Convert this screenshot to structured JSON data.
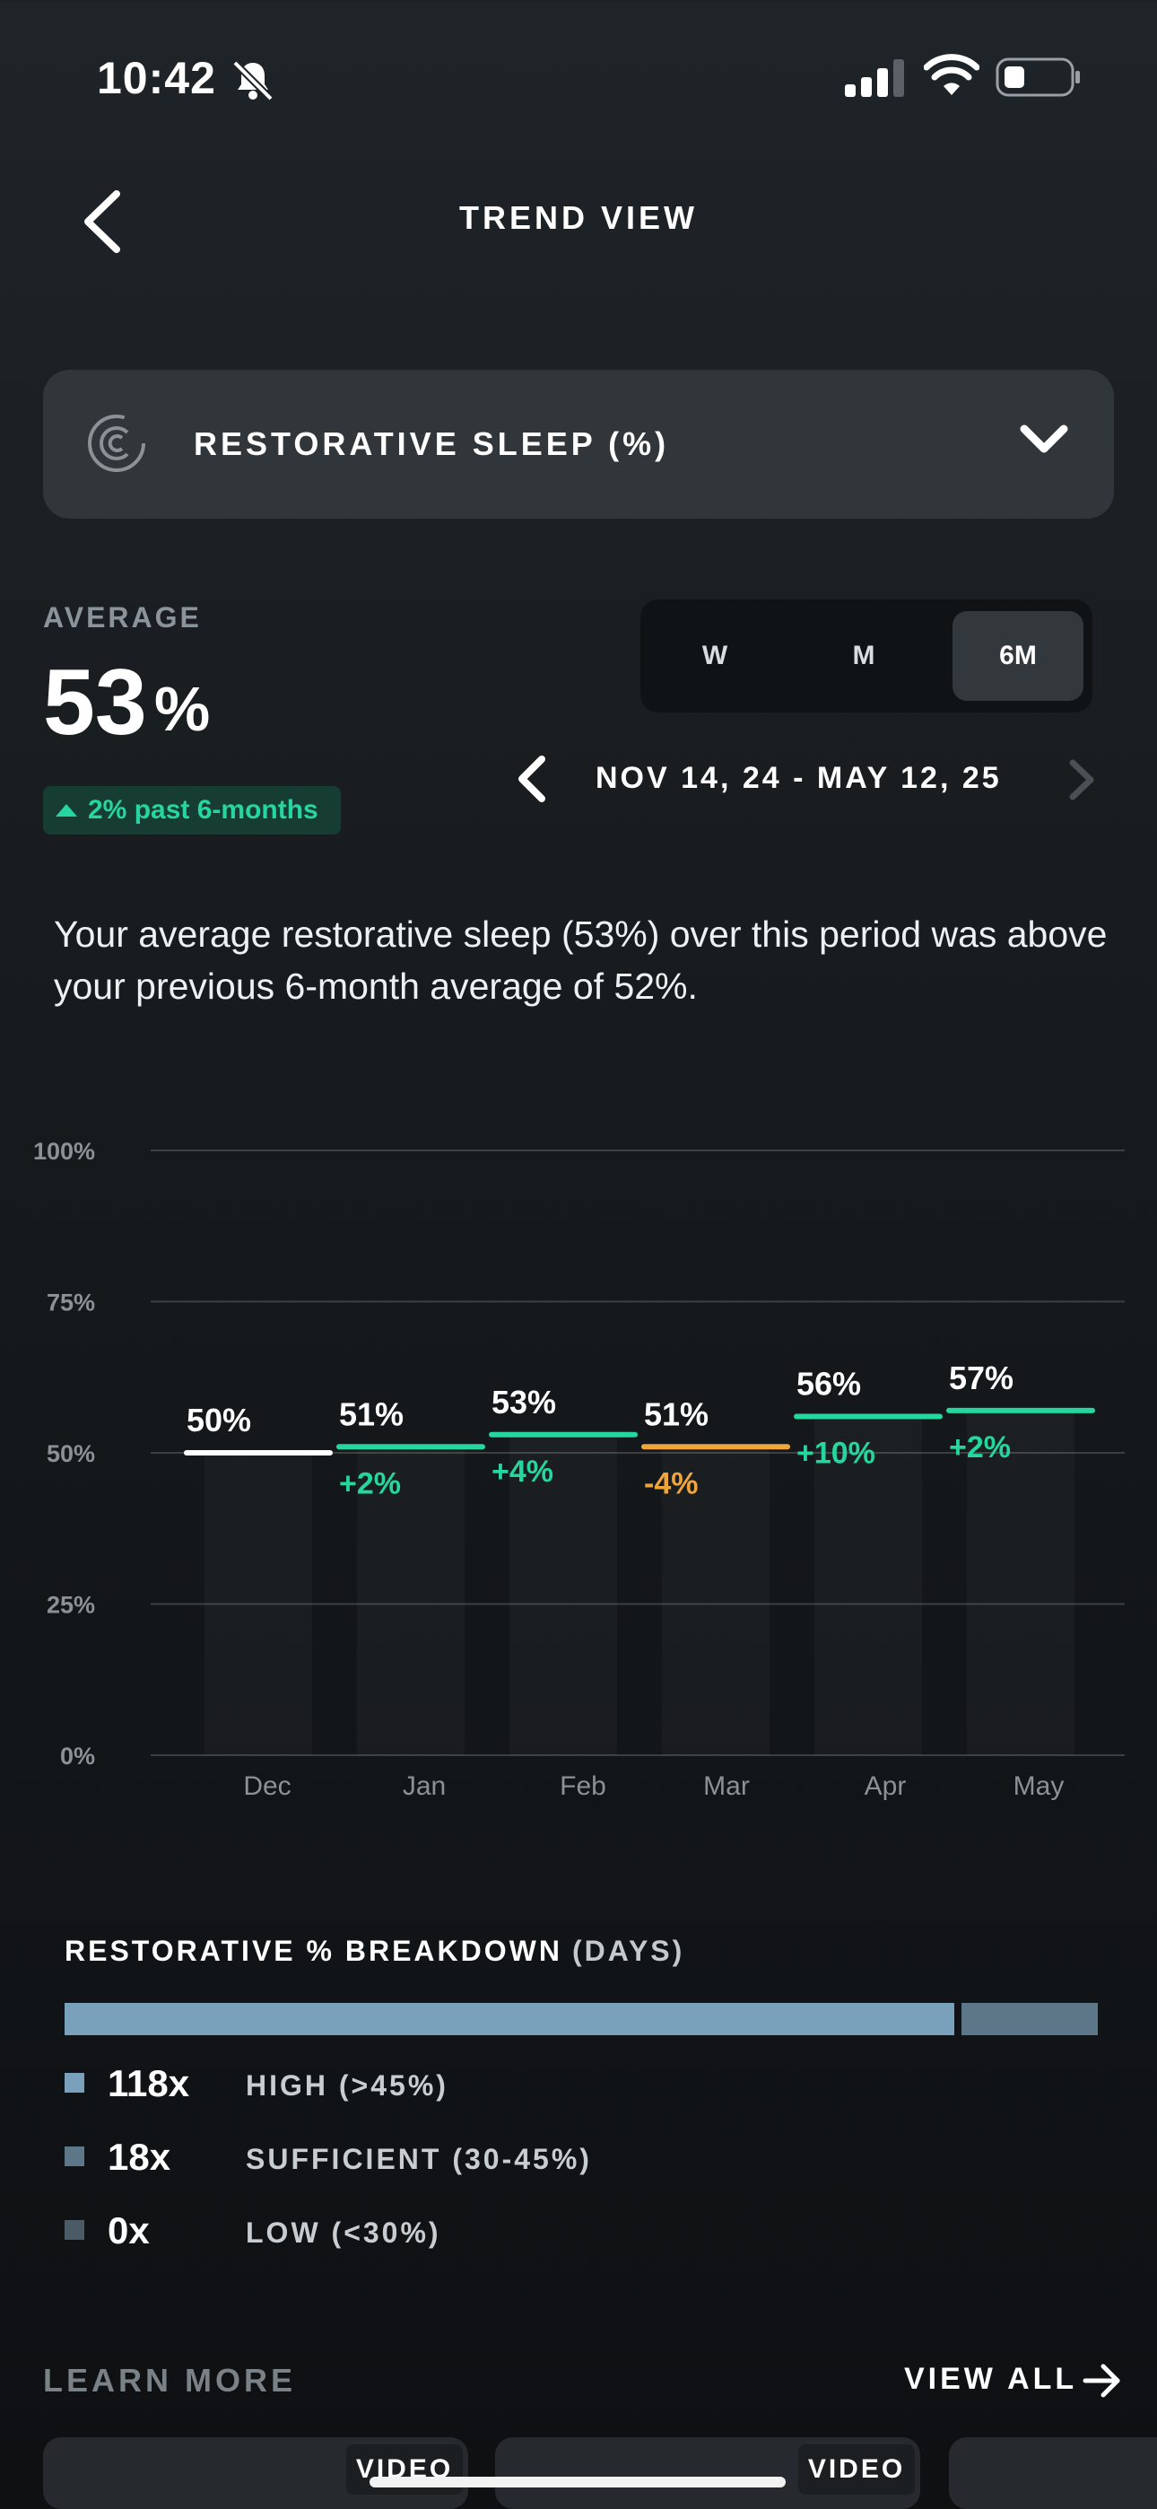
{
  "status": {
    "time": "10:42"
  },
  "header": {
    "title": "TREND VIEW"
  },
  "metric_selector": {
    "label": "RESTORATIVE SLEEP (%)"
  },
  "average": {
    "label": "AVERAGE",
    "value": "53",
    "unit": "%",
    "badge": "2% past 6-months"
  },
  "range_tabs": [
    "W",
    "M",
    "6M"
  ],
  "selected_range": "6M",
  "date_range": "NOV 14, 24 - MAY 12, 25",
  "summary": "Your average restorative sleep (53%) over this period was above your previous 6-month average of 52%.",
  "colors": {
    "positive": "#25d6a0",
    "negative": "#f0a53a",
    "neutral": "#ffffff"
  },
  "chart_data": {
    "type": "line",
    "y_ticks": [
      "100%",
      "75%",
      "50%",
      "25%",
      "0%"
    ],
    "ylim": [
      0,
      100
    ],
    "categories": [
      "Dec",
      "Jan",
      "Feb",
      "Mar",
      "Apr",
      "May"
    ],
    "monthly_avg": [
      50,
      51,
      53,
      51,
      56,
      57
    ],
    "avg_labels": [
      "50%",
      "51%",
      "53%",
      "51%",
      "56%",
      "57%"
    ],
    "changes": [
      "",
      "+2%",
      "+4%",
      "-4%",
      "+10%",
      "+2%"
    ],
    "change_direction": [
      "none",
      "up",
      "up",
      "down",
      "up",
      "up"
    ]
  },
  "breakdown": {
    "title": "RESTORATIVE % BREAKDOWN",
    "subtitle": "(DAYS)",
    "items": [
      {
        "count": "118x",
        "label": "HIGH (>45%)",
        "color": "#7aa1bb",
        "days": 118
      },
      {
        "count": "18x",
        "label": "SUFFICIENT (30-45%)",
        "color": "#5d7688",
        "days": 18
      },
      {
        "count": "0x",
        "label": "LOW (<30%)",
        "color": "#4b5b66",
        "days": 0
      }
    ]
  },
  "learn_more": {
    "title": "LEARN MORE",
    "view_all": "VIEW ALL",
    "cards": [
      {
        "tag": "VIDEO"
      },
      {
        "tag": "VIDEO"
      }
    ]
  }
}
